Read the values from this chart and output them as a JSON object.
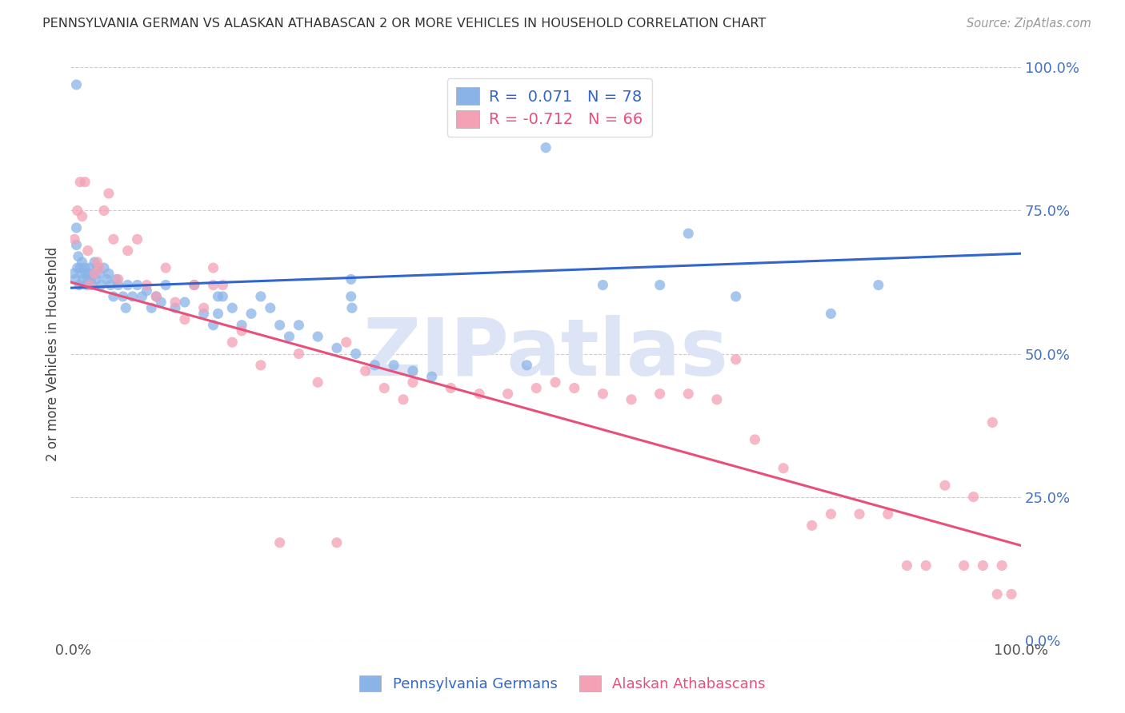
{
  "title": "PENNSYLVANIA GERMAN VS ALASKAN ATHABASCAN 2 OR MORE VEHICLES IN HOUSEHOLD CORRELATION CHART",
  "source": "Source: ZipAtlas.com",
  "ylabel": "2 or more Vehicles in Household",
  "yticks_labels": [
    "0.0%",
    "25.0%",
    "50.0%",
    "75.0%",
    "100.0%"
  ],
  "ytick_vals": [
    0.0,
    0.25,
    0.5,
    0.75,
    1.0
  ],
  "xlim": [
    0.0,
    1.0
  ],
  "ylim": [
    0.0,
    1.0
  ],
  "legend_blue_label": "R =  0.071   N = 78",
  "legend_pink_label": "R = -0.712   N = 66",
  "legend_blue_color": "#8ab4e8",
  "legend_pink_color": "#f4a0b5",
  "blue_line_color": "#3366cc",
  "pink_line_color": "#e8507a",
  "blue_line_start": 0.615,
  "blue_line_end": 0.675,
  "pink_line_start": 0.625,
  "pink_line_end": 0.165,
  "watermark": "ZIPatlas",
  "watermark_color": "#dce4f5",
  "background_color": "#ffffff",
  "grid_color": "#cccccc",
  "title_color": "#333333",
  "right_ytick_color": "#4472c4",
  "blue_scatter_x": [
    0.003,
    0.005,
    0.007,
    0.008,
    0.009,
    0.01,
    0.011,
    0.012,
    0.013,
    0.015,
    0.016,
    0.017,
    0.018,
    0.019,
    0.02,
    0.021,
    0.022,
    0.023,
    0.025,
    0.027,
    0.028,
    0.03,
    0.032,
    0.035,
    0.038,
    0.04,
    0.042,
    0.045,
    0.048,
    0.05,
    0.055,
    0.058,
    0.06,
    0.065,
    0.07,
    0.075,
    0.08,
    0.085,
    0.09,
    0.095,
    0.1,
    0.11,
    0.12,
    0.13,
    0.14,
    0.15,
    0.16,
    0.17,
    0.18,
    0.19,
    0.2,
    0.21,
    0.22,
    0.23,
    0.24,
    0.26,
    0.28,
    0.3,
    0.32,
    0.34,
    0.36,
    0.38,
    0.48,
    0.5,
    0.56,
    0.62,
    0.65,
    0.7,
    0.8,
    0.85,
    0.295,
    0.295,
    0.296,
    0.155,
    0.155,
    0.006,
    0.006,
    0.006
  ],
  "blue_scatter_y": [
    0.64,
    0.63,
    0.65,
    0.67,
    0.62,
    0.65,
    0.64,
    0.66,
    0.63,
    0.65,
    0.64,
    0.62,
    0.63,
    0.64,
    0.65,
    0.63,
    0.62,
    0.64,
    0.66,
    0.63,
    0.65,
    0.64,
    0.62,
    0.65,
    0.63,
    0.64,
    0.62,
    0.6,
    0.63,
    0.62,
    0.6,
    0.58,
    0.62,
    0.6,
    0.62,
    0.6,
    0.61,
    0.58,
    0.6,
    0.59,
    0.62,
    0.58,
    0.59,
    0.62,
    0.57,
    0.55,
    0.6,
    0.58,
    0.55,
    0.57,
    0.6,
    0.58,
    0.55,
    0.53,
    0.55,
    0.53,
    0.51,
    0.5,
    0.48,
    0.48,
    0.47,
    0.46,
    0.48,
    0.86,
    0.62,
    0.62,
    0.71,
    0.6,
    0.57,
    0.62,
    0.63,
    0.6,
    0.58,
    0.6,
    0.57,
    0.97,
    0.69,
    0.72
  ],
  "pink_scatter_x": [
    0.004,
    0.007,
    0.01,
    0.012,
    0.015,
    0.018,
    0.02,
    0.025,
    0.028,
    0.03,
    0.035,
    0.04,
    0.045,
    0.05,
    0.06,
    0.07,
    0.08,
    0.09,
    0.1,
    0.11,
    0.12,
    0.13,
    0.14,
    0.15,
    0.16,
    0.17,
    0.18,
    0.2,
    0.22,
    0.24,
    0.26,
    0.29,
    0.31,
    0.33,
    0.36,
    0.4,
    0.43,
    0.46,
    0.49,
    0.51,
    0.53,
    0.56,
    0.59,
    0.62,
    0.65,
    0.68,
    0.7,
    0.72,
    0.75,
    0.78,
    0.8,
    0.83,
    0.86,
    0.88,
    0.9,
    0.92,
    0.94,
    0.95,
    0.96,
    0.97,
    0.975,
    0.98,
    0.99,
    0.15,
    0.28,
    0.35
  ],
  "pink_scatter_y": [
    0.7,
    0.75,
    0.8,
    0.74,
    0.8,
    0.68,
    0.62,
    0.64,
    0.66,
    0.65,
    0.75,
    0.78,
    0.7,
    0.63,
    0.68,
    0.7,
    0.62,
    0.6,
    0.65,
    0.59,
    0.56,
    0.62,
    0.58,
    0.65,
    0.62,
    0.52,
    0.54,
    0.48,
    0.17,
    0.5,
    0.45,
    0.52,
    0.47,
    0.44,
    0.45,
    0.44,
    0.43,
    0.43,
    0.44,
    0.45,
    0.44,
    0.43,
    0.42,
    0.43,
    0.43,
    0.42,
    0.49,
    0.35,
    0.3,
    0.2,
    0.22,
    0.22,
    0.22,
    0.13,
    0.13,
    0.27,
    0.13,
    0.25,
    0.13,
    0.38,
    0.08,
    0.13,
    0.08,
    0.62,
    0.17,
    0.42
  ]
}
